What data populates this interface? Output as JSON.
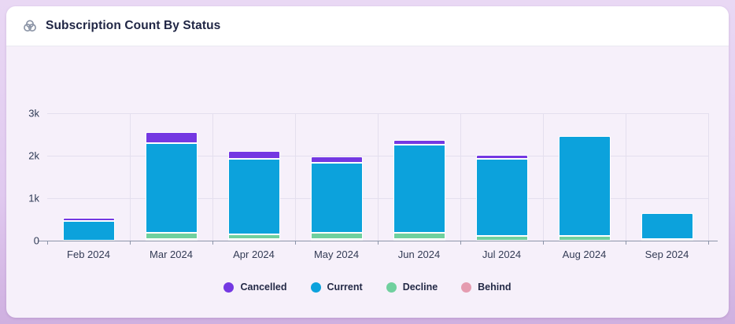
{
  "card": {
    "title": "Subscription Count By Status",
    "icon": "venn-circles-icon"
  },
  "colors": {
    "cancelled": "#7438e2",
    "current": "#0ca2dc",
    "decline": "#70d09e",
    "behind": "#e59cb0",
    "grid": "#e4dfee",
    "axis": "#8d95a9",
    "text": "#1f2544",
    "card_body_bg": "#f6f0fa",
    "header_bg": "#ffffff",
    "frame_bg": "#e0c9ef"
  },
  "chart_data": {
    "type": "bar",
    "stacked": true,
    "title": "Subscription Count By Status",
    "xlabel": "",
    "ylabel": "",
    "ylim": [
      0,
      3000
    ],
    "yticks": [
      {
        "value": 0,
        "label": "0"
      },
      {
        "value": 1000,
        "label": "1k"
      },
      {
        "value": 2000,
        "label": "2k"
      },
      {
        "value": 3000,
        "label": "3k"
      }
    ],
    "grid": true,
    "legend_position": "bottom",
    "categories": [
      "Feb 2024",
      "Mar 2024",
      "Apr 2024",
      "May 2024",
      "Jun 2024",
      "Jul 2024",
      "Aug 2024",
      "Sep 2024"
    ],
    "series": [
      {
        "name": "Behind",
        "color": "#e59cb0",
        "stack_order": 1,
        "values": [
          0,
          30,
          30,
          30,
          30,
          0,
          0,
          0
        ]
      },
      {
        "name": "Decline",
        "color": "#70d09e",
        "stack_order": 2,
        "values": [
          0,
          145,
          105,
          145,
          145,
          110,
          105,
          40
        ]
      },
      {
        "name": "Current",
        "color": "#0ca2dc",
        "stack_order": 3,
        "values": [
          460,
          2105,
          1775,
          1635,
          2065,
          1820,
          2355,
          610
        ]
      },
      {
        "name": "Cancelled",
        "color": "#7438e2",
        "stack_order": 4,
        "values": [
          80,
          260,
          180,
          150,
          110,
          80,
          0,
          0
        ]
      }
    ],
    "legend": [
      {
        "label": "Cancelled",
        "color": "#7438e2"
      },
      {
        "label": "Current",
        "color": "#0ca2dc"
      },
      {
        "label": "Decline",
        "color": "#70d09e"
      },
      {
        "label": "Behind",
        "color": "#e59cb0"
      }
    ]
  }
}
